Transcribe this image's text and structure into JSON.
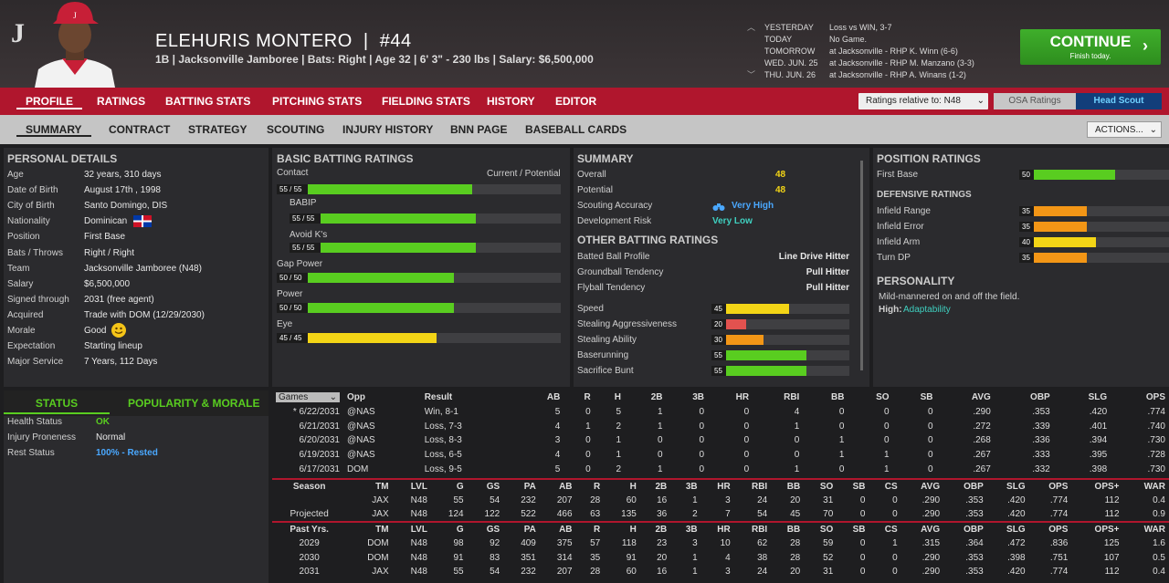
{
  "header": {
    "logo": "J",
    "name": "ELEHURIS MONTERO",
    "number": "#44",
    "info": "1B | Jacksonville Jamboree | Bats: Right | Age 32 | 6' 3\" - 230 lbs | Salary: $6,500,000"
  },
  "schedule": [
    {
      "day": "YESTERDAY",
      "event": "Loss vs WIN, 3-7"
    },
    {
      "day": "TODAY",
      "event": "No Game."
    },
    {
      "day": "TOMORROW",
      "event": "at Jacksonville - RHP K. Winn (6-6)"
    },
    {
      "day": "WED. JUN. 25",
      "event": "at Jacksonville - RHP M. Manzano (3-3)"
    },
    {
      "day": "THU. JUN. 26",
      "event": "at Jacksonville - RHP A. Winans (1-2)"
    }
  ],
  "continue": {
    "label": "CONTINUE",
    "sub": "Finish today."
  },
  "tabs": [
    "PROFILE",
    "RATINGS",
    "BATTING STATS",
    "PITCHING STATS",
    "FIELDING STATS",
    "HISTORY",
    "EDITOR"
  ],
  "ratings_select": "Ratings relative to: N48",
  "osa_label": "OSA Ratings",
  "scout_label": "Head Scout",
  "subtabs": [
    "SUMMARY",
    "CONTRACT",
    "STRATEGY",
    "SCOUTING",
    "INJURY HISTORY",
    "BNN PAGE",
    "BASEBALL CARDS"
  ],
  "actions_label": "ACTIONS...",
  "personal": {
    "title": "PERSONAL DETAILS",
    "rows": [
      [
        "Age",
        "32 years, 310 days"
      ],
      [
        "Date of Birth",
        "August 17th , 1998"
      ],
      [
        "City of Birth",
        "Santo Domingo, DIS"
      ],
      [
        "Nationality",
        "Dominican"
      ],
      [
        "Position",
        "First Base"
      ],
      [
        "Bats / Throws",
        "Right / Right"
      ],
      [
        "Team",
        "Jacksonville Jamboree (N48)"
      ],
      [
        "Salary",
        "$6,500,000"
      ],
      [
        "Signed through",
        "2031 (free agent)"
      ],
      [
        "Acquired",
        "Trade with DOM (12/29/2030)"
      ],
      [
        "Morale",
        "Good"
      ],
      [
        "Expectation",
        "Starting lineup"
      ],
      [
        "Major Service",
        "7 Years, 112 Days"
      ]
    ]
  },
  "batting": {
    "title": "BASIC BATTING RATINGS",
    "right_header": "Current / Potential",
    "items": [
      {
        "label": "Contact",
        "text": "55 / 55",
        "value": 55,
        "color": "g"
      },
      {
        "label": "BABIP",
        "text": "55 / 55",
        "value": 55,
        "color": "g"
      },
      {
        "label": "Avoid K's",
        "text": "55 / 55",
        "value": 55,
        "color": "g"
      },
      {
        "label": "Gap Power",
        "text": "50 / 50",
        "value": 50,
        "color": "g"
      },
      {
        "label": "Power",
        "text": "50 / 50",
        "value": 50,
        "color": "g"
      },
      {
        "label": "Eye",
        "text": "45 / 45",
        "value": 45,
        "color": "y"
      }
    ]
  },
  "summary": {
    "title": "SUMMARY",
    "overall_label": "Overall",
    "overall": "48",
    "potential_label": "Potential",
    "potential": "48",
    "scout_label": "Scouting Accuracy",
    "scout_value": "Very High",
    "dev_label": "Development Risk",
    "dev_value": "Very Low",
    "other_title": "OTHER BATTING RATINGS",
    "profile": [
      [
        "Batted Ball Profile",
        "Line Drive Hitter"
      ],
      [
        "Groundball Tendency",
        "Pull Hitter"
      ],
      [
        "Flyball Tendency",
        "Pull Hitter"
      ]
    ],
    "running": [
      {
        "label": "Speed",
        "value": 45,
        "color": "y"
      },
      {
        "label": "Stealing Aggressiveness",
        "value": 20,
        "color": "r"
      },
      {
        "label": "Stealing Ability",
        "value": 30,
        "color": "o"
      },
      {
        "label": "Baserunning",
        "value": 55,
        "color": "g"
      },
      {
        "label": "Sacrifice Bunt",
        "value": 55,
        "color": "g"
      }
    ]
  },
  "position": {
    "title": "POSITION RATINGS",
    "first_label": "First Base",
    "first_value": 50,
    "def_title": "DEFENSIVE RATINGS",
    "def": [
      {
        "label": "Infield Range",
        "value": 35,
        "color": "o"
      },
      {
        "label": "Infield Error",
        "value": 35,
        "color": "o"
      },
      {
        "label": "Infield Arm",
        "value": 40,
        "color": "y"
      },
      {
        "label": "Turn DP",
        "value": 35,
        "color": "o"
      }
    ],
    "personality_title": "PERSONALITY",
    "personality_text": "Mild-mannered on and off the field.",
    "high_label": "High:",
    "high_value": "Adaptability"
  },
  "status": {
    "tab1": "STATUS",
    "tab2": "POPULARITY & MORALE",
    "rows": [
      [
        "Health Status",
        "OK"
      ],
      [
        "Injury Proneness",
        "Normal"
      ],
      [
        "Rest Status",
        "100% - Rested"
      ]
    ]
  },
  "games": {
    "select": "Games",
    "headers": [
      "Opp",
      "Result",
      "AB",
      "R",
      "H",
      "2B",
      "3B",
      "HR",
      "RBI",
      "BB",
      "SO",
      "SB",
      "AVG",
      "OBP",
      "SLG",
      "OPS"
    ],
    "rows": [
      [
        "* 6/22/2031",
        "@NAS",
        "Win, 8-1",
        "5",
        "0",
        "5",
        "1",
        "0",
        "0",
        "4",
        "0",
        "0",
        "0",
        ".290",
        ".353",
        ".420",
        ".774"
      ],
      [
        "6/21/2031",
        "@NAS",
        "Loss, 7-3",
        "4",
        "1",
        "2",
        "1",
        "0",
        "0",
        "1",
        "0",
        "0",
        "0",
        ".272",
        ".339",
        ".401",
        ".740"
      ],
      [
        "6/20/2031",
        "@NAS",
        "Loss, 8-3",
        "3",
        "0",
        "1",
        "0",
        "0",
        "0",
        "0",
        "1",
        "0",
        "0",
        ".268",
        ".336",
        ".394",
        ".730"
      ],
      [
        "6/19/2031",
        "@NAS",
        "Loss, 6-5",
        "4",
        "0",
        "1",
        "0",
        "0",
        "0",
        "0",
        "1",
        "1",
        "0",
        ".267",
        ".333",
        ".395",
        ".728"
      ],
      [
        "6/17/2031",
        "DOM",
        "Loss, 9-5",
        "5",
        "0",
        "2",
        "1",
        "0",
        "0",
        "1",
        "0",
        "1",
        "0",
        ".267",
        ".332",
        ".398",
        ".730"
      ]
    ]
  },
  "season": {
    "headers": [
      "Season",
      "TM",
      "LVL",
      "G",
      "GS",
      "PA",
      "AB",
      "R",
      "H",
      "2B",
      "3B",
      "HR",
      "RBI",
      "BB",
      "SO",
      "SB",
      "CS",
      "AVG",
      "OBP",
      "SLG",
      "OPS",
      "OPS+",
      "WAR"
    ],
    "rows": [
      [
        "",
        "JAX",
        "N48",
        "55",
        "54",
        "232",
        "207",
        "28",
        "60",
        "16",
        "1",
        "3",
        "24",
        "20",
        "31",
        "0",
        "0",
        ".290",
        ".353",
        ".420",
        ".774",
        "112",
        "0.4"
      ],
      [
        "Projected",
        "JAX",
        "N48",
        "124",
        "122",
        "522",
        "466",
        "63",
        "135",
        "36",
        "2",
        "7",
        "54",
        "45",
        "70",
        "0",
        "0",
        ".290",
        ".353",
        ".420",
        ".774",
        "112",
        "0.9"
      ]
    ]
  },
  "past": {
    "headers": [
      "Past Yrs.",
      "TM",
      "LVL",
      "G",
      "GS",
      "PA",
      "AB",
      "R",
      "H",
      "2B",
      "3B",
      "HR",
      "RBI",
      "BB",
      "SO",
      "SB",
      "CS",
      "AVG",
      "OBP",
      "SLG",
      "OPS",
      "OPS+",
      "WAR"
    ],
    "rows": [
      [
        "2029",
        "DOM",
        "N48",
        "98",
        "92",
        "409",
        "375",
        "57",
        "118",
        "23",
        "3",
        "10",
        "62",
        "28",
        "59",
        "0",
        "1",
        ".315",
        ".364",
        ".472",
        ".836",
        "125",
        "1.6"
      ],
      [
        "2030",
        "DOM",
        "N48",
        "91",
        "83",
        "351",
        "314",
        "35",
        "91",
        "20",
        "1",
        "4",
        "38",
        "28",
        "52",
        "0",
        "0",
        ".290",
        ".353",
        ".398",
        ".751",
        "107",
        "0.5"
      ],
      [
        "2031",
        "JAX",
        "N48",
        "55",
        "54",
        "232",
        "207",
        "28",
        "60",
        "16",
        "1",
        "3",
        "24",
        "20",
        "31",
        "0",
        "0",
        ".290",
        ".353",
        ".420",
        ".774",
        "112",
        "0.4"
      ]
    ]
  }
}
